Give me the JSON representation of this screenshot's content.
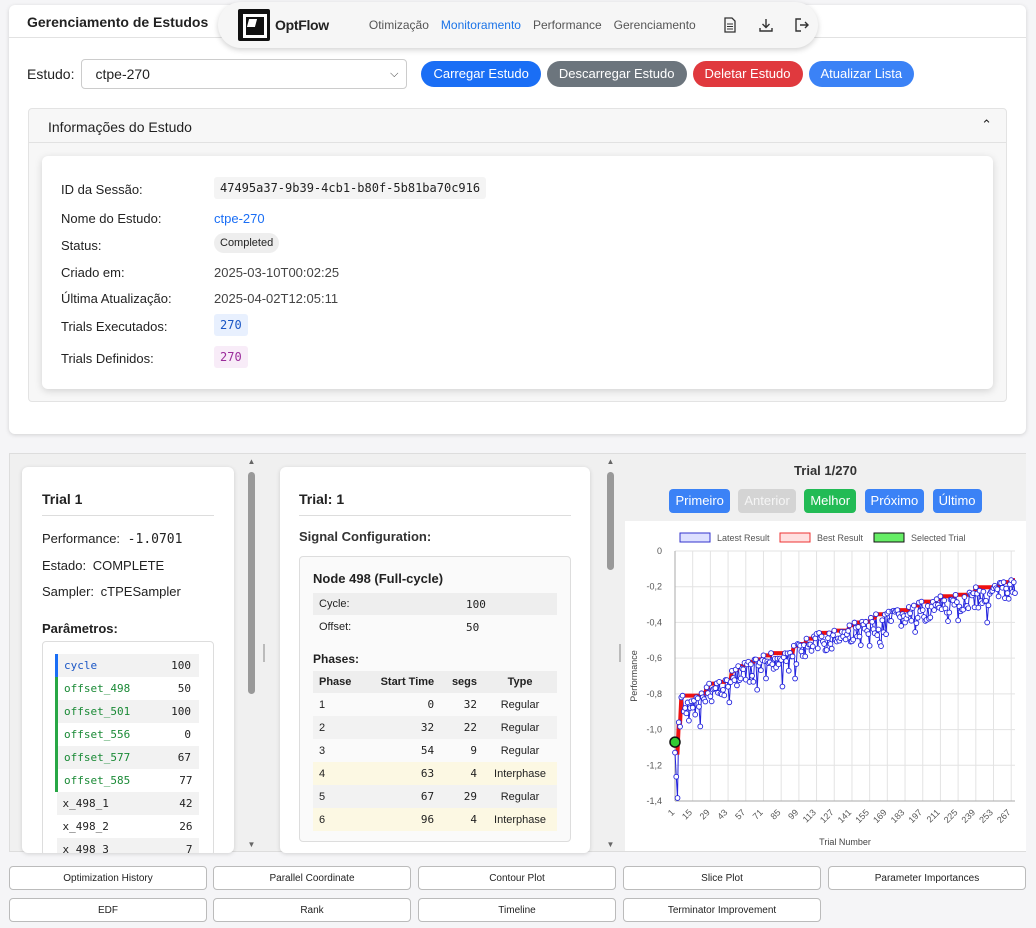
{
  "panel": {
    "title": "Gerenciamento de Estudos"
  },
  "nav": {
    "logo": "OptFlow",
    "links": [
      "Otimização",
      "Monitoramento",
      "Performance",
      "Gerenciamento"
    ],
    "icons": [
      "document-icon",
      "download-icon",
      "logout-icon"
    ]
  },
  "study": {
    "label": "Estudo:",
    "selected": "ctpe-270",
    "buttons": {
      "load": "Carregar Estudo",
      "unload": "Descarregar Estudo",
      "delete": "Deletar Estudo",
      "refresh": "Atualizar Lista"
    }
  },
  "info": {
    "title": "Informações do Estudo",
    "rows": [
      {
        "label": "ID da Sessão:",
        "value": "47495a37-9b39-4cb1-b80f-5b81ba70c916"
      },
      {
        "label": "Nome do Estudo:",
        "value": "ctpe-270"
      },
      {
        "label": "Status:",
        "value": "Completed"
      },
      {
        "label": "Criado em:",
        "value": "2025-03-10T00:02:25"
      },
      {
        "label": "Última Atualização:",
        "value": "2025-04-02T12:05:11"
      },
      {
        "label": "Trials Executados:",
        "value": "270"
      },
      {
        "label": "Trials Definidos:",
        "value": "270"
      }
    ]
  },
  "trial": {
    "title": "Trial 1",
    "performance_label": "Performance:",
    "performance": "-1.0701",
    "state_label": "Estado:",
    "state": "COMPLETE",
    "sampler_label": "Sampler:",
    "sampler": "cTPESampler",
    "params_label": "Parâmetros:",
    "params": [
      {
        "name": "cycle",
        "value": "100"
      },
      {
        "name": "offset_498",
        "value": "50"
      },
      {
        "name": "offset_501",
        "value": "100"
      },
      {
        "name": "offset_556",
        "value": "0"
      },
      {
        "name": "offset_577",
        "value": "67"
      },
      {
        "name": "offset_585",
        "value": "77"
      },
      {
        "name": "x_498_1",
        "value": "42"
      },
      {
        "name": "x_498_2",
        "value": "26"
      },
      {
        "name": "x_498_3",
        "value": "7"
      }
    ]
  },
  "signal": {
    "title": "Trial: 1",
    "section": "Signal Configuration:",
    "node": "Node 498 (Full-cycle)",
    "cycle_label": "Cycle:",
    "cycle": "100",
    "offset_label": "Offset:",
    "offset": "50",
    "phases_label": "Phases:",
    "headers": [
      "Phase",
      "Start Time",
      "segs",
      "Type"
    ],
    "phases": [
      {
        "phase": "1",
        "start": "0",
        "segs": "32",
        "type": "Regular"
      },
      {
        "phase": "2",
        "start": "32",
        "segs": "22",
        "type": "Regular"
      },
      {
        "phase": "3",
        "start": "54",
        "segs": "9",
        "type": "Regular"
      },
      {
        "phase": "4",
        "start": "63",
        "segs": "4",
        "type": "Interphase"
      },
      {
        "phase": "5",
        "start": "67",
        "segs": "29",
        "type": "Regular"
      },
      {
        "phase": "6",
        "start": "96",
        "segs": "4",
        "type": "Interphase"
      }
    ]
  },
  "navigator": {
    "title": "Trial 1/270",
    "buttons": {
      "first": "Primeiro",
      "prev": "Anterior",
      "best": "Melhor",
      "next": "Próximo",
      "last": "Último"
    }
  },
  "chart_data": {
    "type": "line",
    "xlabel": "Trial Number",
    "ylabel": "Performance",
    "ylim": [
      -1.4,
      0
    ],
    "xlim": [
      1,
      270
    ],
    "yticks": [
      "0",
      "-0,2",
      "-0,4",
      "-0,6",
      "-0,8",
      "-1,0",
      "-1,2",
      "-1,4"
    ],
    "xticks": [
      "1",
      "15",
      "29",
      "43",
      "57",
      "71",
      "85",
      "99",
      "113",
      "127",
      "141",
      "155",
      "169",
      "183",
      "197",
      "211",
      "225",
      "239",
      "253",
      "267"
    ],
    "legend": [
      "Latest Result",
      "Best Result",
      "Selected Trial"
    ],
    "grid": true,
    "selected": {
      "x": 1,
      "y": -1.0701
    },
    "series_colors": {
      "latest": "#2222dd",
      "best": "#ee1111",
      "selected": "#22aa22"
    }
  },
  "tools": [
    "Optimization History",
    "Parallel Coordinate",
    "Contour Plot",
    "Slice Plot",
    "Parameter Importances",
    "EDF",
    "Rank",
    "Timeline",
    "Terminator Improvement"
  ]
}
